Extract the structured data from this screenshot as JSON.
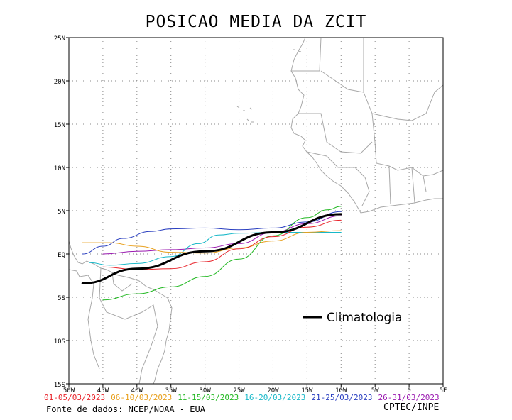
{
  "title": "POSICAO MEDIA DA ZCIT",
  "map": {
    "lat_ticks": [
      "25N",
      "20N",
      "15N",
      "10N",
      "5N",
      "EQ",
      "5S",
      "10S",
      "15S"
    ],
    "lon_ticks": [
      "50W",
      "45W",
      "40W",
      "35W",
      "30W",
      "25W",
      "20W",
      "15W",
      "10W",
      "5W",
      "0",
      "5E"
    ],
    "lat_range": [
      -15,
      25
    ],
    "lon_range": [
      -50,
      5
    ],
    "grid": true
  },
  "legend": {
    "climatology_label": "Climatologia"
  },
  "periods": [
    {
      "label": "01-05/03/2023",
      "color": "#e8232a"
    },
    {
      "label": "06-10/03/2023",
      "color": "#e8a01e"
    },
    {
      "label": "11-15/03/2023",
      "color": "#22b822"
    },
    {
      "label": "16-20/03/2023",
      "color": "#18b8c8"
    },
    {
      "label": "21-25/03/2023",
      "color": "#2a3fc0"
    },
    {
      "label": "26-31/03/2023",
      "color": "#9a1ab0"
    }
  ],
  "chart_data": {
    "type": "line",
    "x_unit": "longitude",
    "y_unit": "latitude",
    "series": [
      {
        "name": "01-05/03/2023",
        "color": "#e8232a",
        "points": [
          [
            -45,
            -1.5
          ],
          [
            -40,
            -1.8
          ],
          [
            -35,
            -1.7
          ],
          [
            -30,
            -0.9
          ],
          [
            -25,
            0.6
          ],
          [
            -20,
            2.0
          ],
          [
            -15,
            3.1
          ],
          [
            -10,
            3.9
          ]
        ]
      },
      {
        "name": "06-10/03/2023",
        "color": "#e8a01e",
        "points": [
          [
            -48,
            1.3
          ],
          [
            -44,
            1.3
          ],
          [
            -40,
            0.9
          ],
          [
            -35,
            0.2
          ],
          [
            -30,
            0.1
          ],
          [
            -25,
            0.7
          ],
          [
            -20,
            1.5
          ],
          [
            -15,
            2.5
          ],
          [
            -10,
            2.7
          ]
        ]
      },
      {
        "name": "11-15/03/2023",
        "color": "#22b822",
        "points": [
          [
            -45,
            -5.3
          ],
          [
            -40,
            -4.6
          ],
          [
            -35,
            -3.8
          ],
          [
            -30,
            -2.6
          ],
          [
            -25,
            -0.6
          ],
          [
            -20,
            2.1
          ],
          [
            -15,
            4.2
          ],
          [
            -12,
            5.1
          ],
          [
            -10,
            5.5
          ]
        ]
      },
      {
        "name": "16-20/03/2023",
        "color": "#18b8c8",
        "points": [
          [
            -47,
            -1.0
          ],
          [
            -44,
            -1.3
          ],
          [
            -40,
            -1.1
          ],
          [
            -35,
            -0.3
          ],
          [
            -31,
            1.2
          ],
          [
            -28,
            2.2
          ],
          [
            -25,
            2.4
          ],
          [
            -20,
            2.5
          ],
          [
            -15,
            2.5
          ],
          [
            -10,
            2.5
          ]
        ]
      },
      {
        "name": "21-25/03/2023",
        "color": "#2a3fc0",
        "points": [
          [
            -48,
            0.0
          ],
          [
            -45,
            0.9
          ],
          [
            -42,
            1.8
          ],
          [
            -38,
            2.6
          ],
          [
            -35,
            2.9
          ],
          [
            -30,
            3.0
          ],
          [
            -25,
            2.8
          ],
          [
            -20,
            3.0
          ],
          [
            -15,
            3.7
          ],
          [
            -10,
            4.9
          ]
        ]
      },
      {
        "name": "26-31/03/2023",
        "color": "#9a1ab0",
        "points": [
          [
            -45,
            0.0
          ],
          [
            -40,
            0.3
          ],
          [
            -35,
            0.5
          ],
          [
            -30,
            0.7
          ],
          [
            -25,
            1.2
          ],
          [
            -20,
            2.5
          ],
          [
            -15,
            3.5
          ],
          [
            -10,
            4.4
          ]
        ]
      },
      {
        "name": "Climatologia",
        "color": "#000000",
        "points": [
          [
            -48,
            -3.4
          ],
          [
            -40,
            -1.7
          ],
          [
            -30,
            0.3
          ],
          [
            -20,
            2.5
          ],
          [
            -10,
            4.6
          ]
        ]
      }
    ]
  },
  "source": "Fonte de dados: NCEP/NOAA - EUA",
  "credit": "CPTEC/INPE"
}
